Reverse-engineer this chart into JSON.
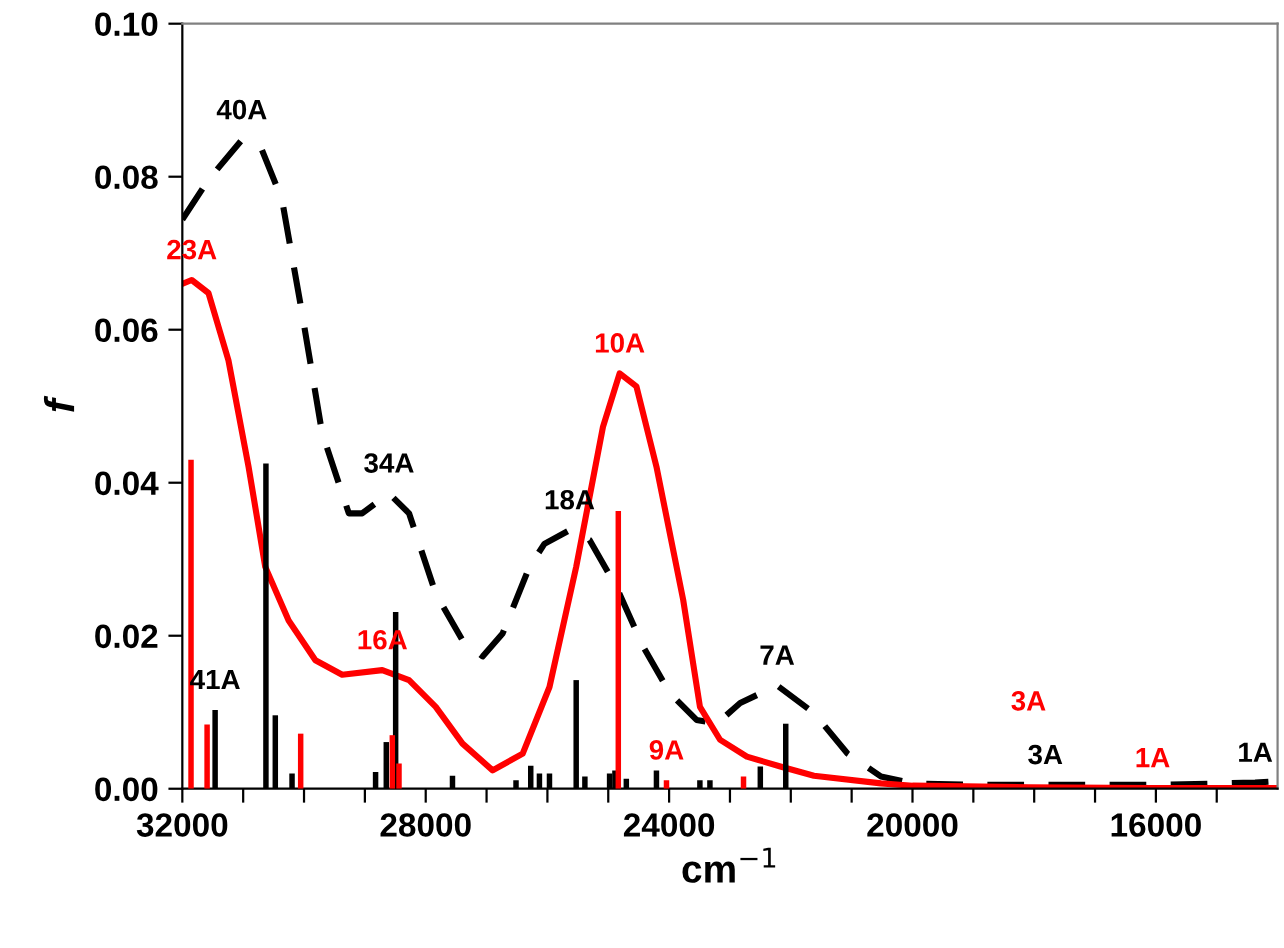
{
  "chart_data": {
    "type": "line",
    "xlabel": "cm$^{−1}$",
    "ylabel": "f",
    "xlim": [
      32000,
      14000
    ],
    "xticks": [
      {
        "value": 32000,
        "label": "32000"
      },
      {
        "value": 31000,
        "label": null
      },
      {
        "value": 30000,
        "label": null
      },
      {
        "value": 29000,
        "label": null
      },
      {
        "value": 28000,
        "label": "28000"
      },
      {
        "value": 27000,
        "label": null
      },
      {
        "value": 26000,
        "label": null
      },
      {
        "value": 25000,
        "label": null
      },
      {
        "value": 24000,
        "label": "24000"
      },
      {
        "value": 23000,
        "label": null
      },
      {
        "value": 22000,
        "label": null
      },
      {
        "value": 21000,
        "label": null
      },
      {
        "value": 20000,
        "label": "20000"
      },
      {
        "value": 19000,
        "label": null
      },
      {
        "value": 18000,
        "label": null
      },
      {
        "value": 17000,
        "label": null
      },
      {
        "value": 16000,
        "label": "16000"
      },
      {
        "value": 15000,
        "label": null
      }
    ],
    "ylim": [
      0,
      0.1
    ],
    "yticks": [
      {
        "value": 0,
        "label": "0.00"
      },
      {
        "value": 0.02,
        "label": "0.02"
      },
      {
        "value": 0.04,
        "label": "0.04"
      },
      {
        "value": 0.06,
        "label": "0.06"
      },
      {
        "value": 0.08,
        "label": "0.08"
      },
      {
        "value": 0.1,
        "label": "0.10"
      }
    ],
    "grid": false,
    "legend": false,
    "annotations": [
      {
        "text": "40A",
        "x": 31022,
        "y": 0.0848
      },
      {
        "text": "23A",
        "x": 31846,
        "y": 0.0665
      },
      {
        "text": "10A",
        "x": 24813,
        "y": 0.0543
      },
      {
        "text": "34A",
        "x": 28604,
        "y": 0.0386
      },
      {
        "text": "18A",
        "x": 25637,
        "y": 0.0338
      },
      {
        "text": "16A",
        "x": 28714,
        "y": 0.0155
      },
      {
        "text": "41A",
        "x": 31461,
        "y": 0.0103
      },
      {
        "text": "7A",
        "x": 22226,
        "y": 0.0135
      },
      {
        "text": "9A",
        "x": 24043,
        "y": 0.0011
      },
      {
        "text": "3A",
        "x": 17818,
        "y": 0.0005
      },
      {
        "text": "3A",
        "x": 18094,
        "y": 0.0002
      },
      {
        "text": "1A",
        "x": 16055,
        "y": 0.0001
      },
      {
        "text": "1A",
        "x": 14369,
        "y": 0.0008
      }
    ],
    "series": [
      {
        "line_style": "dashed",
        "color": "#000000",
        "x": [
          32000,
          31571,
          31022,
          30692,
          30362,
          30033,
          29703,
          29264,
          29044,
          28604,
          28274,
          27835,
          27395,
          27065,
          26736,
          26296,
          26050,
          25637,
          25307,
          24868,
          24428,
          23988,
          23549,
          23219,
          22832,
          22226,
          21620,
          21069,
          20518,
          20000,
          19000,
          17818,
          16000,
          14369,
          14000
        ],
        "values": [
          0.0744,
          0.0796,
          0.0848,
          0.0835,
          0.077,
          0.0622,
          0.0465,
          0.036,
          0.036,
          0.0386,
          0.036,
          0.0255,
          0.0194,
          0.0173,
          0.0203,
          0.029,
          0.032,
          0.0338,
          0.0325,
          0.0264,
          0.0186,
          0.0125,
          0.009,
          0.0085,
          0.0112,
          0.0135,
          0.0099,
          0.0046,
          0.0016,
          0.0007,
          0.0005,
          0.0005,
          0.0005,
          0.0008,
          0.001
        ]
      },
      {
        "line_style": "solid",
        "color": "#ff0000",
        "x": [
          32000,
          31846,
          31571,
          31242,
          30912,
          30637,
          30253,
          29813,
          29373,
          28714,
          28274,
          27835,
          27395,
          26900,
          26406,
          25966,
          25527,
          25087,
          24813,
          24538,
          24208,
          23769,
          23493,
          23163,
          22722,
          22171,
          21620,
          20518,
          20000,
          18094,
          16055,
          14000
        ],
        "values": [
          0.066,
          0.0665,
          0.0648,
          0.056,
          0.0421,
          0.029,
          0.022,
          0.0168,
          0.0149,
          0.0155,
          0.0142,
          0.0107,
          0.0059,
          0.0024,
          0.0046,
          0.0133,
          0.029,
          0.0473,
          0.0543,
          0.0526,
          0.0421,
          0.0247,
          0.0107,
          0.0064,
          0.0042,
          0.0029,
          0.0017,
          0.0007,
          0.0004,
          0.0002,
          0.0001,
          0.0001
        ]
      },
      {
        "type": "bar",
        "color": "#000000",
        "x": [
          31461,
          30626,
          30472,
          30197,
          28824,
          28648,
          28494,
          27560,
          26516,
          26274,
          26131,
          25966,
          25527,
          25384,
          24978,
          24890,
          24703,
          24208,
          23494,
          23329,
          22501,
          22083
        ],
        "values": [
          0.0103,
          0.0425,
          0.0096,
          0.002,
          0.0022,
          0.0061,
          0.0231,
          0.0017,
          0.0011,
          0.003,
          0.002,
          0.002,
          0.0142,
          0.0016,
          0.002,
          0.0024,
          0.0013,
          0.0024,
          0.0011,
          0.0011,
          0.0029,
          0.0085
        ]
      },
      {
        "type": "bar",
        "color": "#ff0000",
        "x": [
          31857,
          31593,
          30055,
          28549,
          28439,
          24835,
          24043,
          22777
        ],
        "values": [
          0.043,
          0.0084,
          0.0072,
          0.007,
          0.0033,
          0.0363,
          0.0011,
          0.0016
        ]
      }
    ]
  }
}
